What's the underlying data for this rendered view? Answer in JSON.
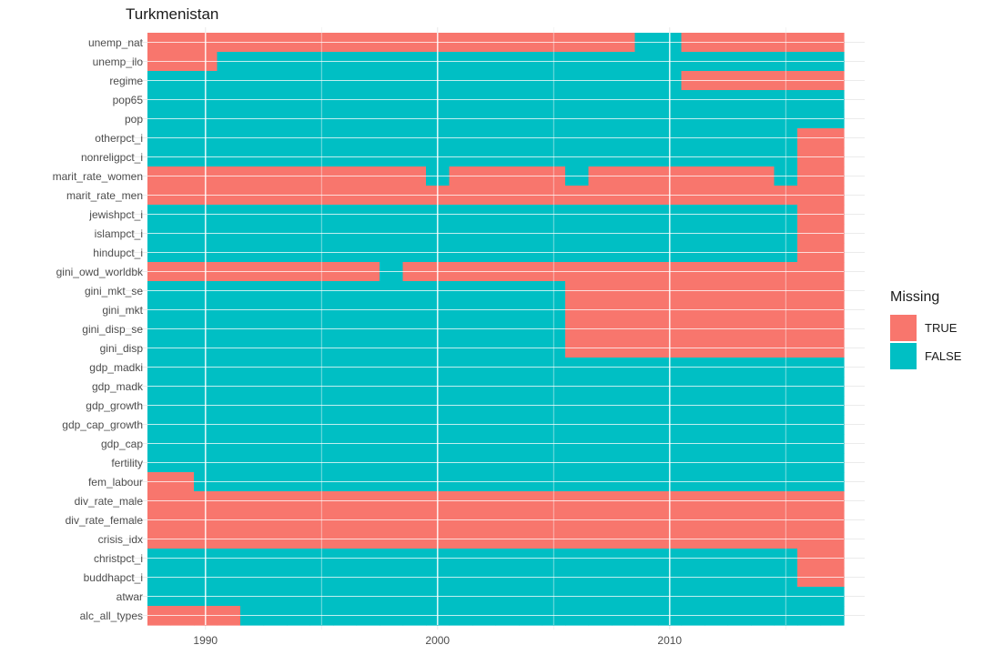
{
  "chart_data": {
    "type": "heatmap",
    "title": "Turkmenistan",
    "xlabel": "",
    "ylabel": "",
    "x_range": [
      1988,
      2017
    ],
    "x_ticks": [
      1990,
      2000,
      2010
    ],
    "y_categories": [
      "unemp_nat",
      "unemp_ilo",
      "regime",
      "pop65",
      "pop",
      "otherpct_i",
      "nonreligpct_i",
      "marit_rate_women",
      "marit_rate_men",
      "jewishpct_i",
      "islampct_i",
      "hindupct_i",
      "gini_owd_worldbk",
      "gini_mkt_se",
      "gini_mkt",
      "gini_disp_se",
      "gini_disp",
      "gdp_madki",
      "gdp_madk",
      "gdp_growth",
      "gdp_cap_growth",
      "gdp_cap",
      "fertility",
      "fem_labour",
      "div_rate_male",
      "div_rate_female",
      "crisis_idx",
      "christpct_i",
      "buddhapct_i",
      "atwar",
      "alc_all_types"
    ],
    "legend": {
      "title": "Missing",
      "position": "right",
      "entries": [
        {
          "label": "TRUE",
          "color": "#F8766D"
        },
        {
          "label": "FALSE",
          "color": "#00BFC4"
        }
      ]
    },
    "grid": true,
    "missing_year_ranges": {
      "unemp_nat": [
        [
          1988,
          2008
        ],
        [
          2011,
          2017
        ]
      ],
      "unemp_ilo": [
        [
          1988,
          1990
        ]
      ],
      "regime": [
        [
          2011,
          2017
        ]
      ],
      "pop65": [],
      "pop": [],
      "otherpct_i": [
        [
          2016,
          2017
        ]
      ],
      "nonreligpct_i": [
        [
          2016,
          2017
        ]
      ],
      "marit_rate_women": [
        [
          1988,
          1999
        ],
        [
          2001,
          2005
        ],
        [
          2007,
          2014
        ],
        [
          2016,
          2017
        ]
      ],
      "marit_rate_men": [
        [
          1988,
          2017
        ]
      ],
      "jewishpct_i": [
        [
          2016,
          2017
        ]
      ],
      "islampct_i": [
        [
          2016,
          2017
        ]
      ],
      "hindupct_i": [
        [
          2016,
          2017
        ]
      ],
      "gini_owd_worldbk": [
        [
          1988,
          1997
        ],
        [
          1999,
          2017
        ]
      ],
      "gini_mkt_se": [
        [
          2006,
          2017
        ]
      ],
      "gini_mkt": [
        [
          2006,
          2017
        ]
      ],
      "gini_disp_se": [
        [
          2006,
          2017
        ]
      ],
      "gini_disp": [
        [
          2006,
          2017
        ]
      ],
      "gdp_madki": [],
      "gdp_madk": [],
      "gdp_growth": [],
      "gdp_cap_growth": [],
      "gdp_cap": [],
      "fertility": [],
      "fem_labour": [
        [
          1988,
          1989
        ]
      ],
      "div_rate_male": [
        [
          1988,
          2017
        ]
      ],
      "div_rate_female": [
        [
          1988,
          2017
        ]
      ],
      "crisis_idx": [
        [
          1988,
          2017
        ]
      ],
      "christpct_i": [
        [
          2016,
          2017
        ]
      ],
      "buddhapct_i": [
        [
          2016,
          2017
        ]
      ],
      "atwar": [],
      "alc_all_types": [
        [
          1988,
          1991
        ]
      ]
    }
  }
}
